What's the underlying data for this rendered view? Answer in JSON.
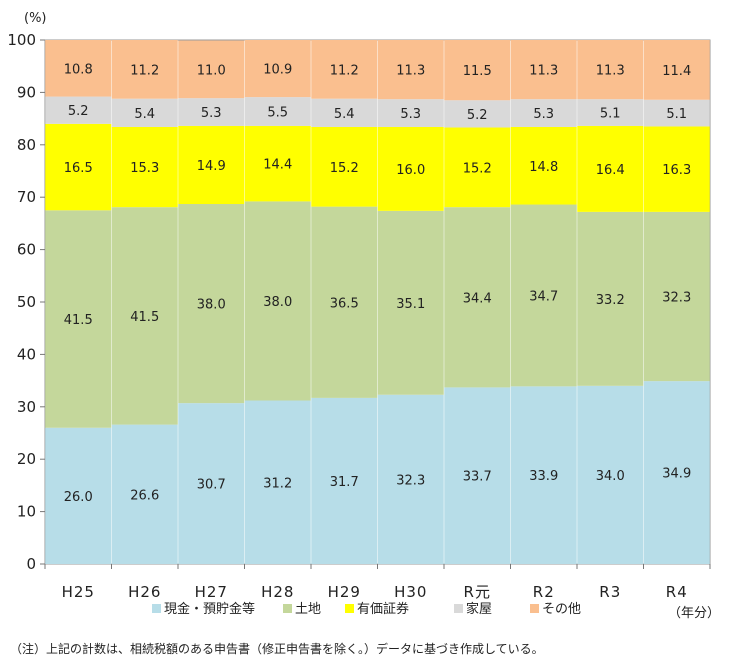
{
  "chart_data": {
    "type": "bar",
    "stacked": true,
    "y_unit_label": "(%)",
    "x_unit_label": "（年分）",
    "ylim": [
      0,
      100
    ],
    "yticks": [
      0,
      10,
      20,
      30,
      40,
      50,
      60,
      70,
      80,
      90,
      100
    ],
    "categories": [
      "H25",
      "H26",
      "H27",
      "H28",
      "H29",
      "H30",
      "R元",
      "R2",
      "R3",
      "R4"
    ],
    "series": [
      {
        "name": "現金・預貯金等",
        "color": "#b7dde8",
        "values": [
          26.0,
          26.6,
          30.7,
          31.2,
          31.7,
          32.3,
          33.7,
          33.9,
          34.0,
          34.9
        ],
        "labels": [
          "26.0",
          "26.6",
          "30.7",
          "31.2",
          "31.7",
          "32.3",
          "33.7",
          "33.9",
          "34.0",
          "34.9"
        ]
      },
      {
        "name": "土地",
        "color": "#c4d79b",
        "values": [
          41.5,
          41.5,
          38.0,
          38.0,
          36.5,
          35.1,
          34.4,
          34.7,
          33.2,
          32.3
        ],
        "labels": [
          "41.5",
          "41.5",
          "38.0",
          "38.0",
          "36.5",
          "35.1",
          "34.4",
          "34.7",
          "33.2",
          "32.3"
        ]
      },
      {
        "name": "有価証券",
        "color": "#ffff00",
        "values": [
          16.5,
          15.3,
          14.9,
          14.4,
          15.2,
          16.0,
          15.2,
          14.8,
          16.4,
          16.3
        ],
        "labels": [
          "16.5",
          "15.3",
          "14.9",
          "14.4",
          "15.2",
          "16.0",
          "15.2",
          "14.8",
          "16.4",
          "16.3"
        ]
      },
      {
        "name": "家屋",
        "color": "#d9d9d9",
        "values": [
          5.2,
          5.4,
          5.3,
          5.5,
          5.4,
          5.3,
          5.2,
          5.3,
          5.1,
          5.1
        ],
        "labels": [
          "5.2",
          "5.4",
          "5.3",
          "5.5",
          "5.4",
          "5.3",
          "5.2",
          "5.3",
          "5.1",
          "5.1"
        ]
      },
      {
        "name": "その他",
        "color": "#fabf8f",
        "values": [
          10.8,
          11.2,
          11.0,
          10.9,
          11.2,
          11.3,
          11.5,
          11.3,
          11.3,
          11.4
        ],
        "labels": [
          "10.8",
          "11.2",
          "11.0",
          "10.9",
          "11.2",
          "11.3",
          "11.5",
          "11.3",
          "11.3",
          "11.4"
        ]
      }
    ],
    "legend_position": "bottom"
  },
  "footnote": "（注）上記の計数は、相続税額のある申告書（修正申告書を除く。）データに基づき作成している。"
}
